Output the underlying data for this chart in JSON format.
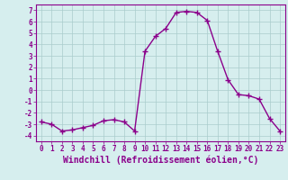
{
  "x": [
    0,
    1,
    2,
    3,
    4,
    5,
    6,
    7,
    8,
    9,
    10,
    11,
    12,
    13,
    14,
    15,
    16,
    17,
    18,
    19,
    20,
    21,
    22,
    23
  ],
  "y": [
    -2.8,
    -3.0,
    -3.6,
    -3.5,
    -3.3,
    -3.1,
    -2.7,
    -2.6,
    -2.8,
    -3.6,
    3.4,
    4.7,
    5.4,
    6.8,
    6.9,
    6.8,
    6.1,
    3.4,
    0.9,
    -0.4,
    -0.5,
    -0.8,
    -2.5,
    -3.6
  ],
  "line_color": "#8b008b",
  "marker": "+",
  "marker_size": 4,
  "marker_lw": 1.0,
  "line_width": 1.0,
  "bg_color": "#d6eeee",
  "grid_color": "#aacccc",
  "xlabel": "Windchill (Refroidissement éolien,°C)",
  "ylim": [
    -4.5,
    7.5
  ],
  "xlim": [
    -0.5,
    23.5
  ],
  "yticks": [
    -4,
    -3,
    -2,
    -1,
    0,
    1,
    2,
    3,
    4,
    5,
    6,
    7
  ],
  "xticks": [
    0,
    1,
    2,
    3,
    4,
    5,
    6,
    7,
    8,
    9,
    10,
    11,
    12,
    13,
    14,
    15,
    16,
    17,
    18,
    19,
    20,
    21,
    22,
    23
  ],
  "tick_color": "#8b008b",
  "tick_fontsize": 5.5,
  "xlabel_fontsize": 7.0,
  "xlabel_color": "#8b008b",
  "xlabel_weight": "bold",
  "spine_color": "#8b008b"
}
